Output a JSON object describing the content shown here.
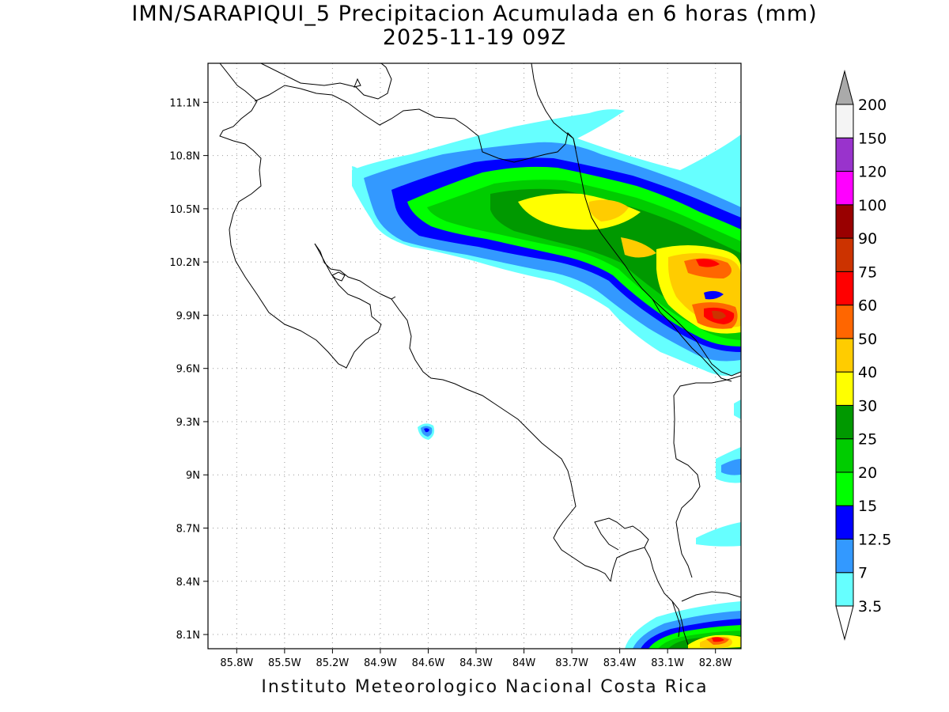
{
  "title": {
    "line1": "IMN/SARAPIQUI_5 Precipitacion Acumulada en 6 horas (mm)",
    "line2": "2025-11-19 09Z"
  },
  "footer": "Instituto Meteorologico Nacional Costa Rica",
  "map": {
    "lon_range": [
      -85.98,
      -82.64
    ],
    "lat_range": [
      8.02,
      11.32
    ],
    "lat_ticks": [
      {
        "value": 11.1,
        "label": "11.1N"
      },
      {
        "value": 10.8,
        "label": "10.8N"
      },
      {
        "value": 10.5,
        "label": "10.5N"
      },
      {
        "value": 10.2,
        "label": "10.2N"
      },
      {
        "value": 9.9,
        "label": "9.9N"
      },
      {
        "value": 9.6,
        "label": "9.6N"
      },
      {
        "value": 9.3,
        "label": "9.3N"
      },
      {
        "value": 9.0,
        "label": "9N"
      },
      {
        "value": 8.7,
        "label": "8.7N"
      },
      {
        "value": 8.4,
        "label": "8.4N"
      },
      {
        "value": 8.1,
        "label": "8.1N"
      }
    ],
    "lon_ticks": [
      {
        "value": -85.8,
        "label": "85.8W"
      },
      {
        "value": -85.5,
        "label": "85.5W"
      },
      {
        "value": -85.2,
        "label": "85.2W"
      },
      {
        "value": -84.9,
        "label": "84.9W"
      },
      {
        "value": -84.6,
        "label": "84.6W"
      },
      {
        "value": -84.3,
        "label": "84.3W"
      },
      {
        "value": -84.0,
        "label": "84W"
      },
      {
        "value": -83.7,
        "label": "83.7W"
      },
      {
        "value": -83.4,
        "label": "83.4W"
      },
      {
        "value": -83.1,
        "label": "83.1W"
      },
      {
        "value": -82.8,
        "label": "82.8W"
      }
    ],
    "grid": true
  },
  "legend": {
    "units": "mm",
    "levels": [
      {
        "label": "3.5",
        "color": "#66ffff"
      },
      {
        "label": "7",
        "color": "#3399ff"
      },
      {
        "label": "12.5",
        "color": "#0000ff"
      },
      {
        "label": "15",
        "color": "#00ff00"
      },
      {
        "label": "20",
        "color": "#00cc00"
      },
      {
        "label": "25",
        "color": "#009900"
      },
      {
        "label": "30",
        "color": "#ffff00"
      },
      {
        "label": "40",
        "color": "#ffcc00"
      },
      {
        "label": "50",
        "color": "#ff6600"
      },
      {
        "label": "60",
        "color": "#ff0000"
      },
      {
        "label": "75",
        "color": "#cc3300"
      },
      {
        "label": "90",
        "color": "#990000"
      },
      {
        "label": "100",
        "color": "#ff00ff"
      },
      {
        "label": "120",
        "color": "#9933cc"
      },
      {
        "label": "150",
        "color": "#f4f4f4"
      },
      {
        "label": "200",
        "color": "#aaaaaa"
      }
    ]
  }
}
